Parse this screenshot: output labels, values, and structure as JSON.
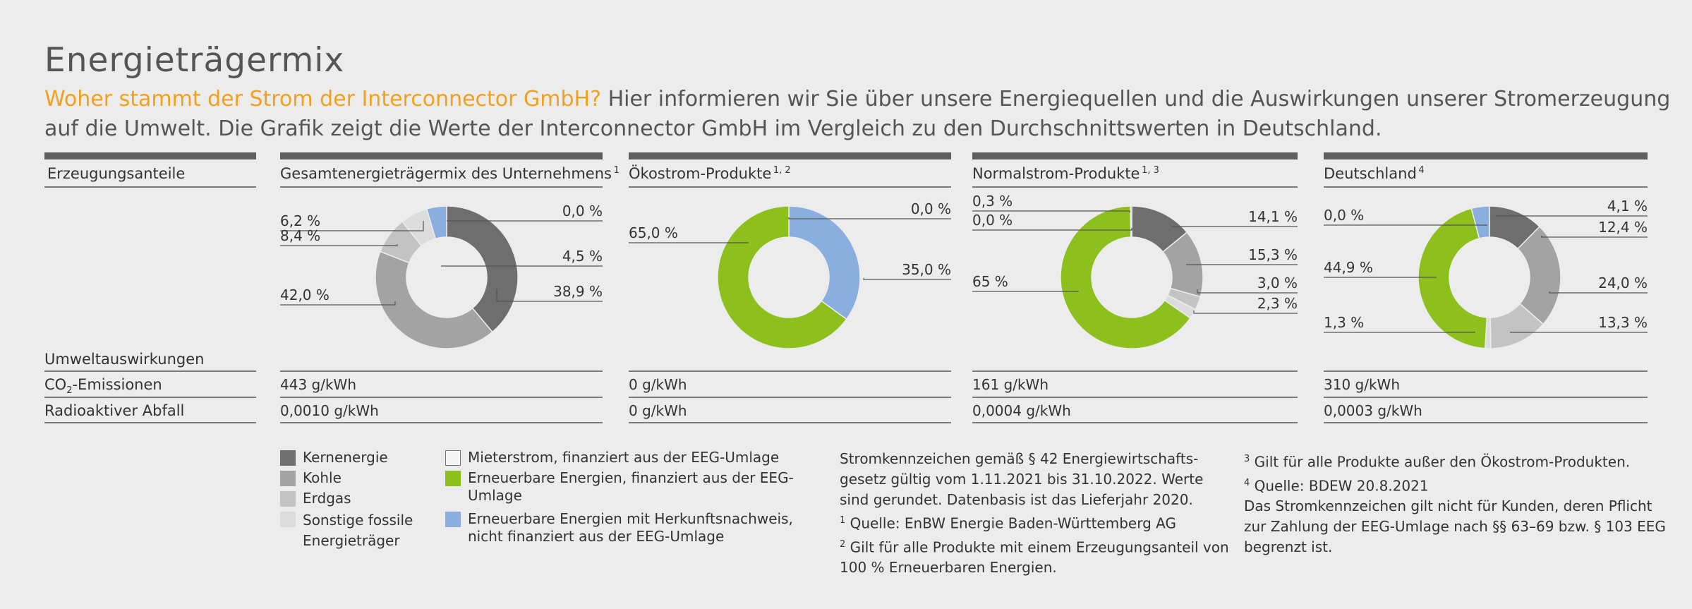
{
  "title": "Energieträgermix",
  "intro": {
    "highlight": "Woher stammt der Strom der Interconnector GmbH?",
    "text": " Hier informieren wir Sie über unsere Energiequellen und die Auswirkungen unserer Stromerzeugung auf die Umwelt. Die Grafik zeigt die Werte der Interconnector GmbH im Vergleich zu den Durchschnittswerten in Deutschland."
  },
  "row_labels": {
    "shares": "Erzeugungsanteile",
    "impacts": "Umweltauswirkungen",
    "co2_prefix": "CO",
    "co2_sub": "2",
    "co2_suffix": "-Emissionen",
    "waste": "Radioaktiver Abfall"
  },
  "colors": {
    "kernenergie": "#6e6e6e",
    "kohle": "#a3a3a3",
    "erdgas": "#c3c3c3",
    "sonstige": "#dcdcdc",
    "mieterstrom": "#f4f4f4",
    "eeg": "#8dbf1d",
    "herkunft": "#8aaedd",
    "accent": "#f0a11d"
  },
  "chart_data": [
    {
      "type": "pie",
      "title": "Gesamtenergieträgermix des Unternehmens",
      "title_sup": "1",
      "slices": [
        {
          "name": "Kernenergie",
          "value": 38.9,
          "label": "38,9 %",
          "color": "#6e6e6e"
        },
        {
          "name": "Kohle",
          "value": 42.0,
          "label": "42,0 %",
          "color": "#a3a3a3"
        },
        {
          "name": "Erdgas",
          "value": 8.4,
          "label": "8,4 %",
          "color": "#c3c3c3"
        },
        {
          "name": "Sonstige fossile Energieträger",
          "value": 6.2,
          "label": "6,2 %",
          "color": "#dcdcdc"
        },
        {
          "name": "Mieterstrom, finanziert aus der EEG-Umlage",
          "value": 0.0,
          "label": "0,0 %",
          "color": "#f4f4f4"
        },
        {
          "name": "Erneuerbare Energien mit Herkunftsnachweis, nicht finanziert aus der EEG-Umlage",
          "value": 4.5,
          "label": "4,5 %",
          "color": "#8aaedd"
        }
      ],
      "co2": "443 g/kWh",
      "waste": "0,0010 g/kWh"
    },
    {
      "type": "pie",
      "title": "Ökostrom-Produkte",
      "title_sup": "1, 2",
      "slices": [
        {
          "name": "Erneuerbare Energien mit Herkunftsnachweis, nicht finanziert aus der EEG-Umlage",
          "value": 35.0,
          "label": "35,0 %",
          "color": "#8aaedd"
        },
        {
          "name": "Erneuerbare Energien, finanziert aus der EEG-Umlage",
          "value": 65.0,
          "label": "65,0 %",
          "color": "#8dbf1d"
        },
        {
          "name": "Mieterstrom, finanziert aus der EEG-Umlage",
          "value": 0.0,
          "label": "0,0 %",
          "color": "#f4f4f4"
        }
      ],
      "co2": "0 g/kWh",
      "waste": "0 g/kWh"
    },
    {
      "type": "pie",
      "title": "Normalstrom-Produkte",
      "title_sup": "1, 3",
      "slices": [
        {
          "name": "Kernenergie",
          "value": 14.1,
          "label": "14,1 %",
          "color": "#6e6e6e"
        },
        {
          "name": "Kohle",
          "value": 15.3,
          "label": "15,3 %",
          "color": "#a3a3a3"
        },
        {
          "name": "Erdgas",
          "value": 3.0,
          "label": "3,0 %",
          "color": "#c3c3c3"
        },
        {
          "name": "Sonstige fossile Energieträger",
          "value": 2.3,
          "label": "2,3 %",
          "color": "#dcdcdc"
        },
        {
          "name": "Erneuerbare Energien, finanziert aus der EEG-Umlage",
          "value": 65.0,
          "label": "65 %",
          "color": "#8dbf1d"
        },
        {
          "name": "Mieterstrom, finanziert aus der EEG-Umlage",
          "value": 0.0,
          "label": "0,0 %",
          "color": "#f4f4f4"
        },
        {
          "name": "Erneuerbare Energien mit Herkunftsnachweis, nicht finanziert aus der EEG-Umlage",
          "value": 0.3,
          "label": "0,3 %",
          "color": "#8aaedd"
        }
      ],
      "co2": "161 g/kWh",
      "waste": "0,0004 g/kWh"
    },
    {
      "type": "pie",
      "title": "Deutschland",
      "title_sup": "4",
      "slices": [
        {
          "name": "Kernenergie",
          "value": 12.4,
          "label": "12,4 %",
          "color": "#6e6e6e"
        },
        {
          "name": "Kohle",
          "value": 24.0,
          "label": "24,0 %",
          "color": "#a3a3a3"
        },
        {
          "name": "Erdgas",
          "value": 13.3,
          "label": "13,3 %",
          "color": "#c3c3c3"
        },
        {
          "name": "Sonstige fossile Energieträger",
          "value": 1.3,
          "label": "1,3 %",
          "color": "#dcdcdc"
        },
        {
          "name": "Erneuerbare Energien, finanziert aus der EEG-Umlage",
          "value": 44.9,
          "label": "44,9 %",
          "color": "#8dbf1d"
        },
        {
          "name": "Mieterstrom, finanziert aus der EEG-Umlage",
          "value": 0.0,
          "label": "0,0 %",
          "color": "#f4f4f4"
        },
        {
          "name": "Erneuerbare Energien mit Herkunftsnachweis, nicht finanziert aus der EEG-Umlage",
          "value": 4.1,
          "label": "4,1 %",
          "color": "#8aaedd"
        }
      ],
      "co2": "310 g/kWh",
      "waste": "0,0003 g/kWh"
    }
  ],
  "legend": [
    {
      "label": "Kernenergie",
      "color": "#6e6e6e"
    },
    {
      "label": "Kohle",
      "color": "#a3a3a3"
    },
    {
      "label": "Erdgas",
      "color": "#c3c3c3"
    },
    {
      "label": "Sonstige fossile Energieträger",
      "color": "#dcdcdc"
    },
    {
      "label": "Mieterstrom, finanziert aus der EEG-Umlage",
      "color": "#f4f4f4"
    },
    {
      "label": "Erneuerbare Energien, finanziert aus der EEG-Umlage",
      "color": "#8dbf1d"
    },
    {
      "label": "Erneuerbare Energien mit Herkunftsnachweis, nicht finanziert aus der EEG-Umlage",
      "color": "#8aaedd"
    }
  ],
  "notes": {
    "n0": "Stromkennzeichen gemäß § 42 Energiewirtschafts-gesetz gültig vom 1.11.2021 bis 31.10.2022. Werte sind gerundet. Datenbasis ist das Lieferjahr 2020.",
    "n1_sup": "1",
    "n1": " Quelle: EnBW Energie Baden-Württemberg AG",
    "n2_sup": "2",
    "n2": " Gilt für alle Produkte mit einem Erzeugungsanteil von 100 % Erneuerbaren Energien.",
    "n3_sup": "3",
    "n3": " Gilt für alle Produkte außer den Ökostrom-Produkten.",
    "n4_sup": "4",
    "n4": " Quelle: BDEW 20.8.2021",
    "n5": "Das Stromkennzeichen gilt nicht für Kunden, deren Pflicht zur Zahlung der EEG-Umlage nach §§ 63–69 bzw. § 103 EEG begrenzt ist."
  }
}
